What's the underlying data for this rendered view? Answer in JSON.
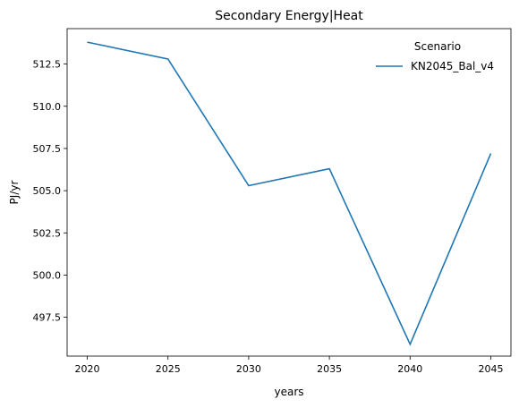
{
  "chart_data": {
    "type": "line",
    "title": "Secondary Energy|Heat",
    "xlabel": "years",
    "ylabel": "PJ/yr",
    "x": [
      2020,
      2025,
      2030,
      2035,
      2040,
      2045
    ],
    "xticks": [
      "2020",
      "2025",
      "2030",
      "2035",
      "2040",
      "2045"
    ],
    "yticks": [
      "497.5",
      "500.0",
      "502.5",
      "505.0",
      "507.5",
      "510.0",
      "512.5"
    ],
    "ylim": [
      495.2,
      514.6
    ],
    "xlim": [
      2018.75,
      2046.25
    ],
    "grid": false,
    "legend": {
      "title": "Scenario",
      "placement": "top-right"
    },
    "series": [
      {
        "name": "KN2045_Bal_v4",
        "color": "#1f77b4",
        "values": [
          513.8,
          512.8,
          505.3,
          506.3,
          495.9,
          507.2
        ]
      }
    ]
  }
}
